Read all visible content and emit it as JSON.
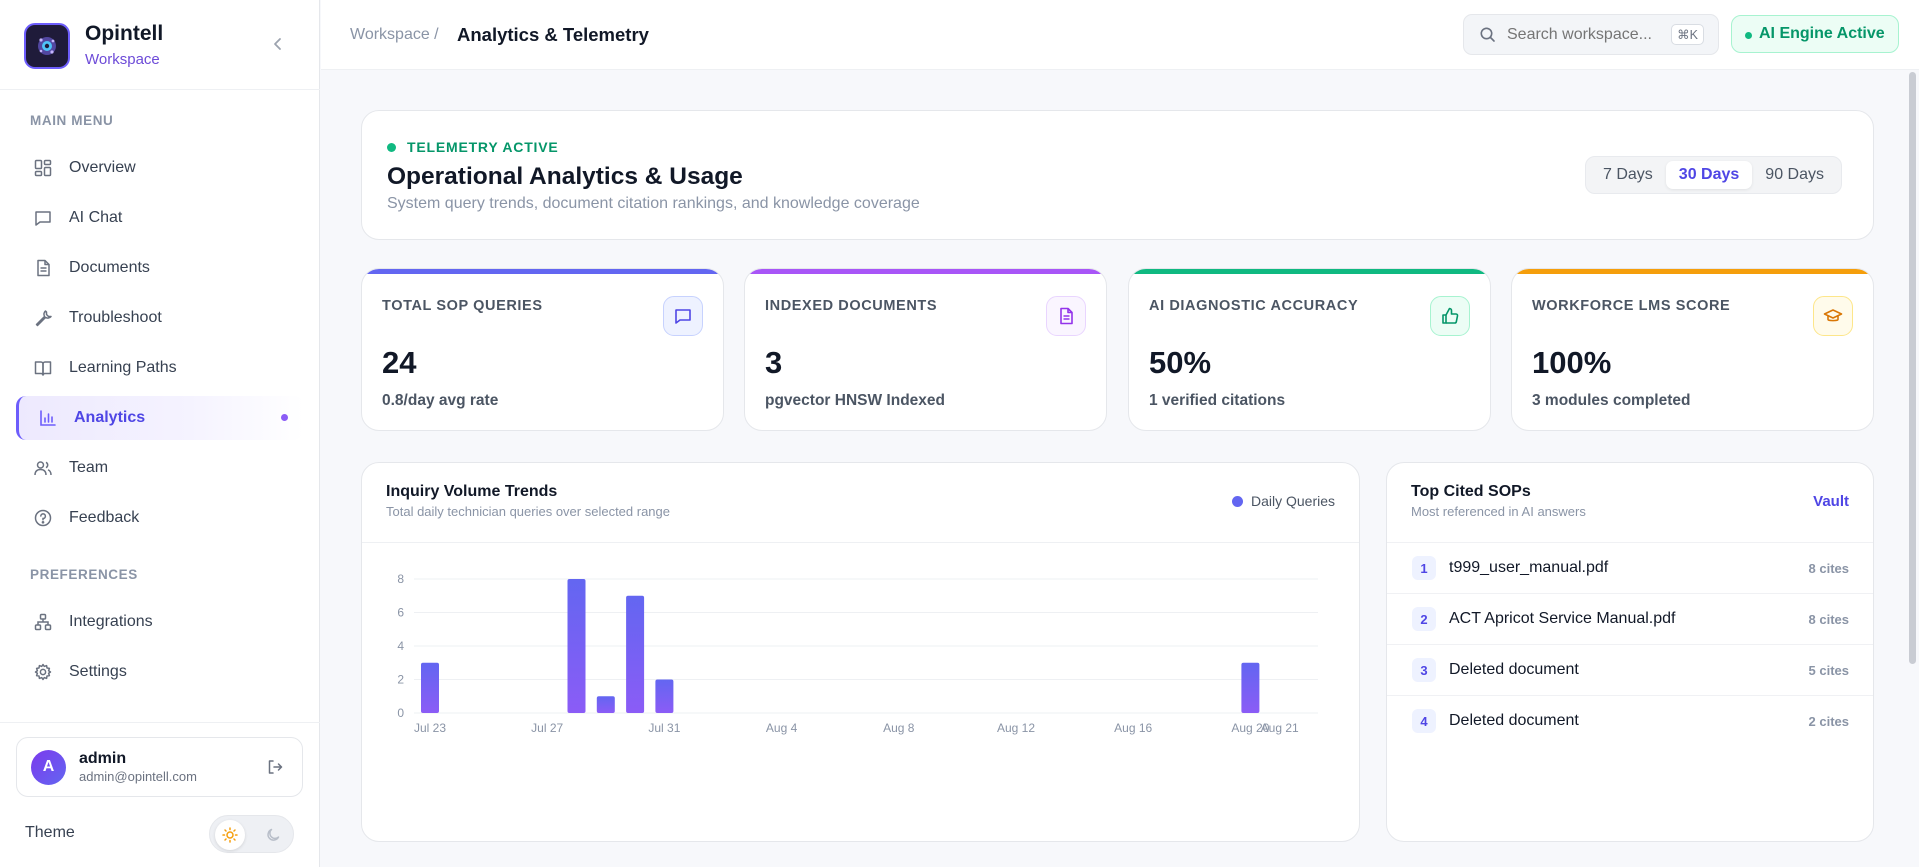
{
  "brand": {
    "name": "Opintell",
    "sub": "Workspace"
  },
  "sidebar": {
    "main_label": "MAIN MENU",
    "pref_label": "PREFERENCES",
    "main_items": [
      {
        "label": "Overview",
        "icon": "grid-icon"
      },
      {
        "label": "AI Chat",
        "icon": "chat-icon"
      },
      {
        "label": "Documents",
        "icon": "document-icon"
      },
      {
        "label": "Troubleshoot",
        "icon": "wrench-icon"
      },
      {
        "label": "Learning Paths",
        "icon": "book-icon"
      },
      {
        "label": "Analytics",
        "icon": "bar-chart-icon",
        "active": true
      },
      {
        "label": "Team",
        "icon": "users-icon"
      },
      {
        "label": "Feedback",
        "icon": "help-circle-icon"
      }
    ],
    "pref_items": [
      {
        "label": "Integrations",
        "icon": "network-icon"
      },
      {
        "label": "Settings",
        "icon": "gear-icon"
      }
    ],
    "user": {
      "initial": "A",
      "name": "admin",
      "email": "admin@opintell.com"
    },
    "theme_label": "Theme"
  },
  "header": {
    "breadcrumb_parent": "Workspace /",
    "breadcrumb_current": "Analytics & Telemetry",
    "search_placeholder": "Search workspace...",
    "search_shortcut": "⌘K",
    "engine_status": "AI Engine Active"
  },
  "hero": {
    "status": "TELEMETRY ACTIVE",
    "title": "Operational Analytics & Usage",
    "subtitle": "System query trends, document citation rankings, and knowledge coverage",
    "ranges": [
      "7 Days",
      "30 Days",
      "90 Days"
    ],
    "selected_range": "30 Days"
  },
  "kpis": [
    {
      "label": "TOTAL SOP QUERIES",
      "value": "24",
      "sub": "0.8/day avg rate",
      "accent": "#6366f1",
      "icon": "message-icon"
    },
    {
      "label": "INDEXED DOCUMENTS",
      "value": "3",
      "sub": "pgvector HNSW Indexed",
      "accent": "#a855f7",
      "icon": "file-text-icon"
    },
    {
      "label": "AI DIAGNOSTIC ACCURACY",
      "value": "50%",
      "sub": "1 verified citations",
      "accent": "#10b981",
      "icon": "thumbs-up-icon"
    },
    {
      "label": "WORKFORCE LMS SCORE",
      "value": "100%",
      "sub": "3 modules completed",
      "accent": "#f59e0b",
      "icon": "graduation-cap-icon"
    }
  ],
  "trend_panel": {
    "title": "Inquiry Volume Trends",
    "subtitle": "Total daily technician queries over selected range",
    "legend": "Daily Queries"
  },
  "chart_data": {
    "type": "bar",
    "title": "Inquiry Volume Trends",
    "xlabel": "",
    "ylabel": "",
    "ylim": [
      0,
      8
    ],
    "yticks": [
      0,
      2,
      4,
      6,
      8
    ],
    "x_tick_labels": [
      "Jul 23",
      "Jul 27",
      "Jul 31",
      "Aug 4",
      "Aug 8",
      "Aug 12",
      "Aug 16",
      "Aug 20",
      "Aug 21"
    ],
    "categories": [
      "Jul 23",
      "Jul 24",
      "Jul 25",
      "Jul 26",
      "Jul 27",
      "Jul 28",
      "Jul 29",
      "Jul 30",
      "Jul 31",
      "Aug 1",
      "Aug 2",
      "Aug 3",
      "Aug 4",
      "Aug 5",
      "Aug 6",
      "Aug 7",
      "Aug 8",
      "Aug 9",
      "Aug 10",
      "Aug 11",
      "Aug 12",
      "Aug 13",
      "Aug 14",
      "Aug 15",
      "Aug 16",
      "Aug 17",
      "Aug 18",
      "Aug 19",
      "Aug 20",
      "Aug 21"
    ],
    "series": [
      {
        "name": "Daily Queries",
        "color": "#6366f1",
        "values": [
          3,
          0,
          0,
          0,
          0,
          8,
          1,
          7,
          2,
          0,
          0,
          0,
          0,
          0,
          0,
          0,
          0,
          0,
          0,
          0,
          0,
          0,
          0,
          0,
          0,
          0,
          0,
          0,
          3,
          0
        ]
      }
    ],
    "grid": true,
    "legend_position": "top-right"
  },
  "cited_panel": {
    "title": "Top Cited SOPs",
    "subtitle": "Most referenced in AI answers",
    "link": "Vault",
    "items": [
      {
        "rank": "1",
        "name": "t999_user_manual.pdf",
        "cites": "8 cites"
      },
      {
        "rank": "2",
        "name": "ACT Apricot Service Manual.pdf",
        "cites": "8 cites"
      },
      {
        "rank": "3",
        "name": "Deleted document",
        "cites": "5 cites"
      },
      {
        "rank": "4",
        "name": "Deleted document",
        "cites": "2 cites"
      }
    ]
  }
}
